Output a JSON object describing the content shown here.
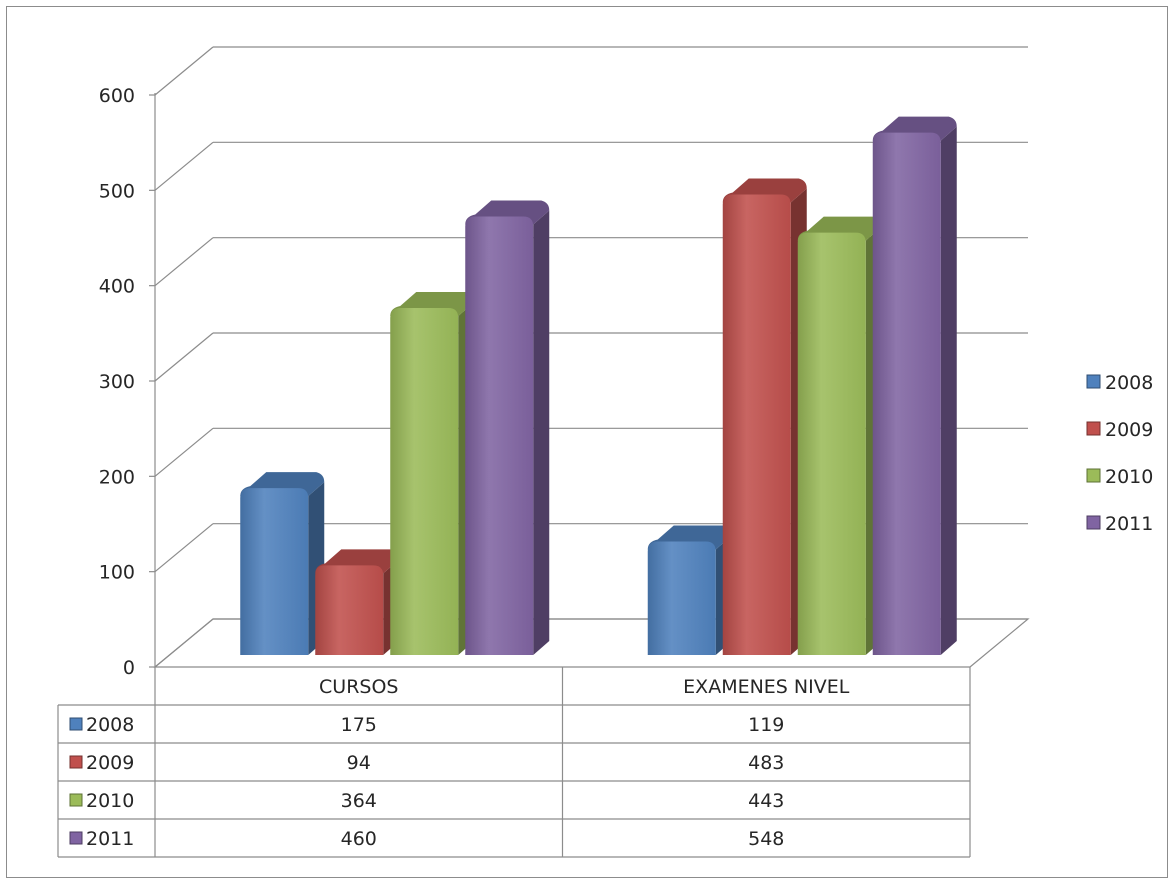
{
  "chart_data": {
    "type": "bar",
    "categories": [
      "CURSOS",
      "EXAMENES NIVEL"
    ],
    "series": [
      {
        "name": "2008",
        "values": [
          175,
          119
        ],
        "color": "#4f81bd"
      },
      {
        "name": "2009",
        "values": [
          94,
          483
        ],
        "color": "#c0504d"
      },
      {
        "name": "2010",
        "values": [
          364,
          443
        ],
        "color": "#9bbb59"
      },
      {
        "name": "2011",
        "values": [
          460,
          548
        ],
        "color": "#8064a2"
      }
    ],
    "y_ticks": [
      "0",
      "100",
      "200",
      "300",
      "400",
      "500",
      "600"
    ],
    "ylim": [
      0,
      600
    ],
    "grid": true,
    "legend_position": "right",
    "data_table": true,
    "style": "3d-clustered-column"
  }
}
